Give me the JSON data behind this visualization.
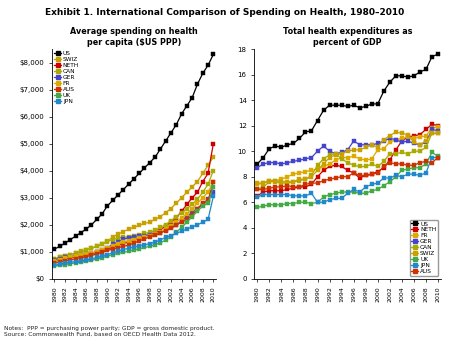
{
  "title": "Exhibit 1. International Comparison of Spending on Health, 1980–2010",
  "left_title": "Average spending on health\nper capita ($US PPP)",
  "right_title": "Total health expenditures as\npercent of GDP",
  "notes": "Notes:  PPP = purchasing power parity; GDP = gross domestic product.\nSource: Commonwealth Fund, based on OECD Health Data 2012.",
  "years": [
    1980,
    1981,
    1982,
    1983,
    1984,
    1985,
    1986,
    1987,
    1988,
    1989,
    1990,
    1991,
    1992,
    1993,
    1994,
    1995,
    1996,
    1997,
    1998,
    1999,
    2000,
    2001,
    2002,
    2003,
    2004,
    2005,
    2006,
    2007,
    2008,
    2009,
    2010
  ],
  "left_data": {
    "US": [
      1100,
      1200,
      1320,
      1450,
      1580,
      1710,
      1840,
      2000,
      2200,
      2400,
      2700,
      2900,
      3100,
      3300,
      3500,
      3700,
      3900,
      4100,
      4300,
      4500,
      4800,
      5100,
      5400,
      5700,
      6100,
      6400,
      6700,
      7200,
      7600,
      7900,
      8300
    ],
    "SWIZ": [
      750,
      800,
      860,
      900,
      950,
      1020,
      1070,
      1130,
      1200,
      1280,
      1400,
      1540,
      1650,
      1750,
      1830,
      1900,
      1980,
      2050,
      2100,
      2200,
      2300,
      2450,
      2600,
      2800,
      3000,
      3200,
      3400,
      3600,
      3900,
      4200,
      4500
    ],
    "NETH": [
      650,
      700,
      740,
      780,
      820,
      860,
      880,
      920,
      980,
      1040,
      1100,
      1170,
      1240,
      1310,
      1370,
      1440,
      1510,
      1580,
      1640,
      1700,
      1820,
      1950,
      2100,
      2250,
      2500,
      2750,
      3000,
      3200,
      3600,
      3900,
      5000
    ],
    "CAN": [
      720,
      790,
      850,
      900,
      950,
      1010,
      1070,
      1130,
      1200,
      1290,
      1380,
      1450,
      1510,
      1540,
      1550,
      1590,
      1640,
      1680,
      1720,
      1800,
      1900,
      2000,
      2150,
      2300,
      2450,
      2600,
      2750,
      2950,
      3200,
      3500,
      4000
    ],
    "GER": [
      700,
      750,
      790,
      820,
      850,
      880,
      910,
      950,
      1000,
      1050,
      1150,
      1280,
      1380,
      1460,
      1520,
      1550,
      1580,
      1600,
      1620,
      1660,
      1700,
      1800,
      1900,
      2000,
      2150,
      2300,
      2450,
      2600,
      2750,
      2950,
      3200
    ],
    "FR": [
      660,
      710,
      760,
      800,
      840,
      880,
      910,
      950,
      1000,
      1060,
      1150,
      1220,
      1300,
      1350,
      1400,
      1440,
      1500,
      1550,
      1600,
      1660,
      1740,
      1830,
      1950,
      2100,
      2250,
      2400,
      2600,
      2800,
      3000,
      3200,
      3600
    ],
    "AUS": [
      580,
      620,
      660,
      700,
      740,
      780,
      820,
      870,
      920,
      980,
      1050,
      1100,
      1150,
      1200,
      1250,
      1320,
      1400,
      1480,
      1550,
      1620,
      1700,
      1780,
      1870,
      1980,
      2100,
      2200,
      2350,
      2600,
      2800,
      2900,
      3600
    ],
    "UK": [
      470,
      500,
      530,
      560,
      590,
      620,
      650,
      690,
      730,
      780,
      840,
      890,
      940,
      980,
      1020,
      1060,
      1110,
      1160,
      1200,
      1260,
      1340,
      1430,
      1560,
      1720,
      1900,
      2100,
      2300,
      2500,
      2700,
      2800,
      3400
    ],
    "JPN": [
      500,
      540,
      580,
      610,
      640,
      670,
      700,
      740,
      790,
      840,
      900,
      960,
      1020,
      1080,
      1130,
      1180,
      1220,
      1260,
      1300,
      1360,
      1440,
      1530,
      1600,
      1680,
      1760,
      1840,
      1920,
      2000,
      2090,
      2200,
      3050
    ]
  },
  "right_data": {
    "US": [
      9.0,
      9.5,
      10.2,
      10.4,
      10.3,
      10.5,
      10.6,
      11.0,
      11.5,
      11.6,
      12.4,
      13.2,
      13.6,
      13.6,
      13.6,
      13.5,
      13.6,
      13.4,
      13.5,
      13.7,
      13.7,
      14.7,
      15.4,
      15.9,
      15.9,
      15.8,
      15.9,
      16.2,
      16.4,
      17.4,
      17.6
    ],
    "NETH": [
      6.5,
      6.8,
      6.9,
      6.9,
      6.9,
      7.0,
      7.1,
      7.2,
      7.2,
      7.4,
      8.0,
      8.5,
      8.8,
      8.9,
      8.8,
      8.5,
      8.3,
      7.9,
      8.1,
      8.2,
      8.4,
      8.7,
      9.3,
      10.1,
      10.8,
      11.1,
      11.2,
      11.3,
      11.7,
      12.1,
      12.0
    ],
    "FR": [
      7.4,
      7.5,
      7.7,
      7.7,
      7.8,
      8.0,
      8.2,
      8.3,
      8.4,
      8.5,
      8.6,
      8.8,
      9.0,
      9.3,
      9.5,
      9.5,
      9.6,
      9.4,
      9.3,
      9.4,
      10.1,
      10.2,
      10.7,
      10.9,
      11.0,
      11.1,
      11.0,
      11.1,
      11.2,
      11.8,
      11.9
    ],
    "GER": [
      8.7,
      9.0,
      9.1,
      9.1,
      9.0,
      9.1,
      9.2,
      9.3,
      9.4,
      9.5,
      10.0,
      10.4,
      10.0,
      9.8,
      9.9,
      10.1,
      10.8,
      10.5,
      10.5,
      10.5,
      10.6,
      10.8,
      11.0,
      10.9,
      10.7,
      10.8,
      10.6,
      10.5,
      10.7,
      11.7,
      11.6
    ],
    "CAN": [
      7.0,
      7.2,
      7.6,
      7.7,
      7.6,
      7.6,
      7.6,
      7.7,
      7.8,
      8.1,
      8.9,
      9.4,
      9.7,
      9.8,
      9.4,
      9.1,
      8.9,
      8.8,
      8.8,
      9.0,
      8.8,
      9.2,
      9.8,
      9.8,
      9.9,
      9.8,
      10.0,
      10.0,
      10.3,
      11.4,
      11.4
    ],
    "SWIZ": [
      7.5,
      7.5,
      7.7,
      7.6,
      7.5,
      7.5,
      7.6,
      7.8,
      7.8,
      8.0,
      8.5,
      9.0,
      9.5,
      9.7,
      9.8,
      10.0,
      10.1,
      10.1,
      10.3,
      10.5,
      10.3,
      10.9,
      11.2,
      11.5,
      11.4,
      11.3,
      10.7,
      10.5,
      10.8,
      11.4,
      11.4
    ],
    "UK": [
      5.6,
      5.7,
      5.8,
      5.8,
      5.8,
      5.9,
      5.9,
      6.0,
      6.0,
      5.9,
      6.0,
      6.4,
      6.6,
      6.7,
      6.8,
      6.8,
      6.8,
      6.7,
      6.7,
      6.9,
      7.0,
      7.3,
      7.6,
      8.0,
      8.5,
      8.6,
      8.7,
      8.7,
      9.0,
      9.9,
      9.6
    ],
    "JPN": [
      6.4,
      6.6,
      6.6,
      6.6,
      6.6,
      6.6,
      6.5,
      6.5,
      6.5,
      6.7,
      6.0,
      6.0,
      6.2,
      6.3,
      6.3,
      6.7,
      7.0,
      6.8,
      7.2,
      7.4,
      7.5,
      7.9,
      7.9,
      8.1,
      8.0,
      8.2,
      8.2,
      8.1,
      8.3,
      9.5,
      9.5
    ],
    "AUS": [
      7.0,
      7.0,
      7.1,
      7.2,
      7.2,
      7.3,
      7.2,
      7.2,
      7.4,
      7.5,
      7.5,
      7.7,
      7.8,
      7.9,
      8.0,
      8.0,
      8.3,
      8.1,
      8.1,
      8.2,
      8.3,
      8.8,
      9.1,
      9.0,
      9.0,
      8.9,
      8.9,
      9.1,
      9.2,
      9.1,
      9.5
    ]
  },
  "left_colors": {
    "US": "#000000",
    "SWIZ": "#c8a000",
    "NETH": "#cc0000",
    "CAN": "#aaaa00",
    "GER": "#4444cc",
    "FR": "#ddaa00",
    "AUS": "#cc3300",
    "UK": "#44aa44",
    "JPN": "#2288cc"
  },
  "right_colors": {
    "US": "#000000",
    "NETH": "#cc0000",
    "FR": "#ddaa00",
    "GER": "#4444cc",
    "CAN": "#aaaa00",
    "SWIZ": "#c8a000",
    "UK": "#44aa44",
    "JPN": "#2288cc",
    "AUS": "#cc3300"
  },
  "left_legend_order": [
    "US",
    "SWIZ",
    "NETH",
    "CAN",
    "GER",
    "FR",
    "AUS",
    "UK",
    "JPN"
  ],
  "right_legend_order": [
    "US",
    "NETH",
    "FR",
    "GER",
    "CAN",
    "SWIZ",
    "UK",
    "JPN",
    "AUS"
  ],
  "left_ylim": [
    0,
    8500
  ],
  "left_yticks": [
    0,
    1000,
    2000,
    3000,
    4000,
    5000,
    6000,
    7000,
    8000
  ],
  "left_ytick_labels": [
    "$0",
    "$1,000",
    "$2,000",
    "$3,000",
    "$4,000",
    "$5,000",
    "$6,000",
    "$7,000",
    "$8,000"
  ],
  "right_ylim": [
    0,
    18
  ],
  "right_yticks": [
    0,
    2,
    4,
    6,
    8,
    10,
    12,
    14,
    16,
    18
  ],
  "xtick_years": [
    1980,
    1982,
    1984,
    1986,
    1988,
    1990,
    1992,
    1994,
    1996,
    1998,
    2000,
    2002,
    2004,
    2006,
    2008,
    2010
  ],
  "marker": "s",
  "markersize": 2.2,
  "linewidth": 0.9
}
